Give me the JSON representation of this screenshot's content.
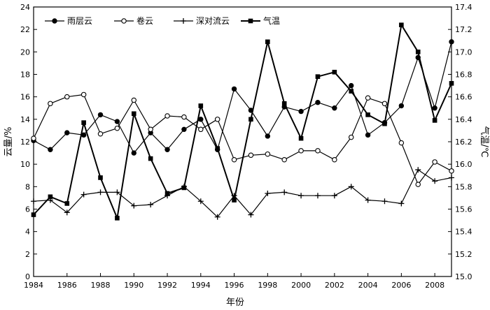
{
  "chart_data": {
    "type": "line",
    "x": [
      1984,
      1985,
      1986,
      1987,
      1988,
      1989,
      1990,
      1991,
      1992,
      1993,
      1994,
      1995,
      1996,
      1997,
      1998,
      1999,
      2000,
      2001,
      2002,
      2003,
      2004,
      2005,
      2006,
      2007,
      2008,
      2009
    ],
    "xlabel": "年份",
    "ylabel_left": "云量/%",
    "ylabel_right": "气温/℃",
    "xlim": [
      1984,
      2009
    ],
    "ylim_left": [
      0,
      24
    ],
    "ylim_right": [
      15.0,
      17.4
    ],
    "xticks": [
      "1984",
      "1986",
      "1988",
      "1990",
      "1992",
      "1994",
      "1996",
      "1998",
      "2000",
      "2002",
      "2004",
      "2006",
      "2008"
    ],
    "yticks_left": [
      "0",
      "2",
      "4",
      "6",
      "8",
      "10",
      "12",
      "14",
      "16",
      "18",
      "20",
      "22",
      "24"
    ],
    "yticks_right": [
      "15.0",
      "15.2",
      "15.4",
      "15.6",
      "15.8",
      "16.0",
      "16.2",
      "16.4",
      "16.6",
      "16.8",
      "17.0",
      "17.2",
      "17.4"
    ],
    "legend_position": "top-left",
    "grid": false,
    "series": [
      {
        "name": "雨层云",
        "axis": "left",
        "marker": "filled-circle",
        "values": [
          12.1,
          11.3,
          12.8,
          12.6,
          14.4,
          13.8,
          11.0,
          12.8,
          11.3,
          13.1,
          14.0,
          11.3,
          16.7,
          14.8,
          12.5,
          15.1,
          14.7,
          15.5,
          15.0,
          17.0,
          12.6,
          13.7,
          15.2,
          19.5,
          15.0,
          20.9
        ]
      },
      {
        "name": "卷云",
        "axis": "left",
        "marker": "open-circle",
        "values": [
          12.3,
          15.4,
          16.0,
          16.2,
          12.7,
          13.2,
          15.7,
          13.1,
          14.3,
          14.2,
          13.1,
          14.0,
          10.4,
          10.8,
          10.9,
          10.4,
          11.2,
          11.2,
          10.4,
          12.4,
          15.9,
          15.4,
          11.9,
          8.2,
          10.2,
          9.4
        ]
      },
      {
        "name": "深对流云",
        "axis": "left",
        "marker": "plus",
        "values": [
          6.7,
          6.8,
          5.7,
          7.3,
          7.5,
          7.5,
          6.3,
          6.4,
          7.2,
          8.0,
          6.7,
          5.3,
          7.2,
          5.5,
          7.4,
          7.5,
          7.2,
          7.2,
          7.2,
          8.0,
          6.8,
          6.7,
          6.5,
          9.5,
          8.5,
          8.8
        ]
      },
      {
        "name": "气温",
        "axis": "right",
        "marker": "filled-square",
        "values": [
          15.55,
          15.71,
          15.65,
          16.37,
          15.88,
          15.52,
          16.45,
          16.05,
          15.74,
          15.79,
          16.52,
          16.14,
          15.68,
          16.4,
          17.09,
          16.54,
          16.23,
          16.78,
          16.82,
          16.65,
          16.44,
          16.36,
          17.24,
          17.0,
          16.39,
          16.72
        ]
      }
    ]
  }
}
